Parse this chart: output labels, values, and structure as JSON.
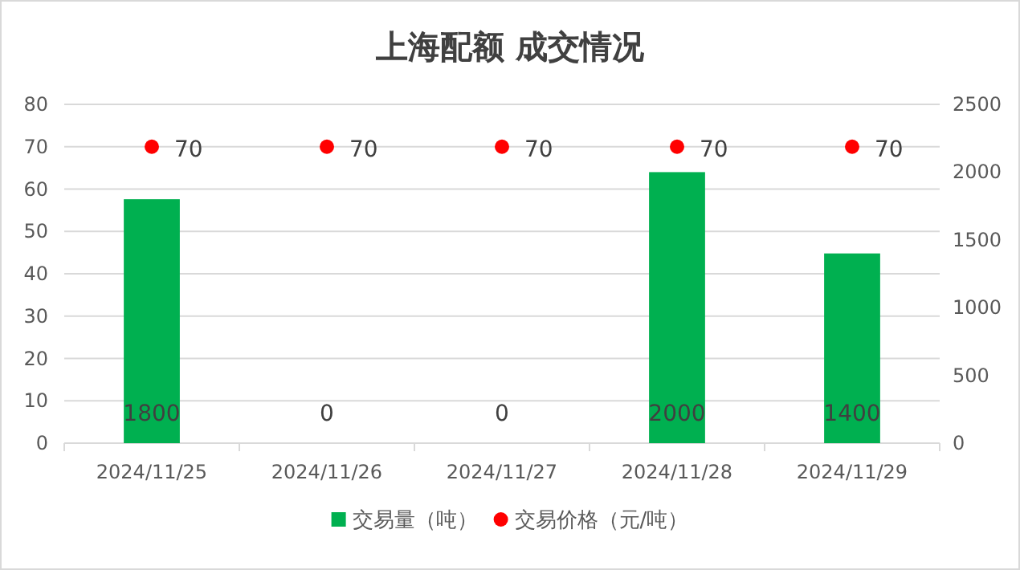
{
  "chart_data": {
    "type": "bar",
    "title": "上海配额 成交情况",
    "categories": [
      "2024/11/25",
      "2024/11/26",
      "2024/11/27",
      "2024/11/28",
      "2024/11/29"
    ],
    "series": [
      {
        "name": "交易量（吨）",
        "color": "#00b050",
        "values": [
          1800,
          0,
          0,
          2000,
          1400
        ],
        "axis": "y2"
      },
      {
        "name": "交易价格（元/吨）",
        "type": "scatter",
        "color": "#ff0000",
        "values": [
          70,
          70,
          70,
          70,
          70
        ]
      }
    ],
    "ylim": [
      0,
      80
    ],
    "yticks": [
      0,
      10,
      20,
      30,
      40,
      50,
      60,
      70,
      80
    ],
    "y2lim": [
      0,
      2500
    ],
    "y2ticks": [
      0,
      500,
      1000,
      1500,
      2000,
      2500
    ],
    "grid": "y",
    "legend": "bottom",
    "data_labels": true,
    "marker": "circle"
  }
}
